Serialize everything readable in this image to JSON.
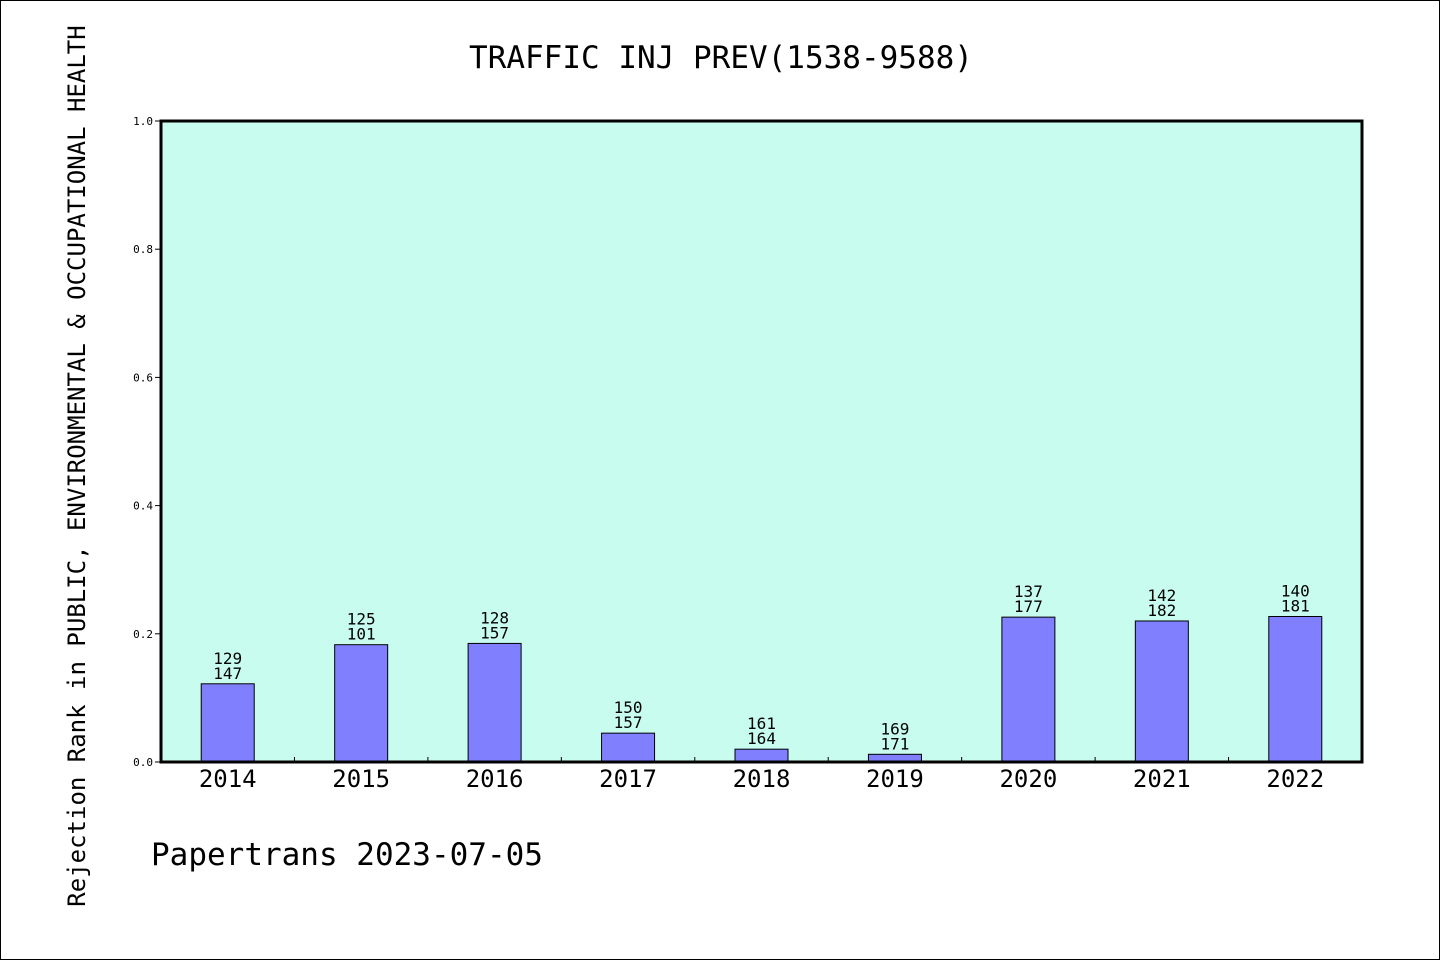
{
  "chart_data": {
    "type": "bar",
    "title": "TRAFFIC INJ PREV(1538-9588)",
    "ylabel": "Rejection Rank in PUBLIC, ENVIRONMENTAL & OCCUPATIONAL HEALTH",
    "xlabel": "",
    "categories": [
      "2014",
      "2015",
      "2016",
      "2017",
      "2018",
      "2019",
      "2020",
      "2021",
      "2022"
    ],
    "values": [
      0.122,
      0.183,
      0.185,
      0.045,
      0.02,
      0.012,
      0.226,
      0.22,
      0.227
    ],
    "labels_top": [
      "129",
      "125",
      "128",
      "150",
      "161",
      "169",
      "137",
      "142",
      "140"
    ],
    "labels_bottom": [
      "147",
      "101",
      "157",
      "157",
      "164",
      "171",
      "177",
      "182",
      "181"
    ],
    "ylim": [
      0,
      1.0
    ],
    "yticks": [
      "0.0",
      "0.2",
      "0.4",
      "0.6",
      "0.8",
      "1.0"
    ],
    "grid": false,
    "colors": {
      "plot_background": "#c8fcee",
      "bar_fill": "#8080ff",
      "bar_stroke": "#000000"
    }
  },
  "footer": {
    "text": "Papertrans 2023-07-05"
  }
}
